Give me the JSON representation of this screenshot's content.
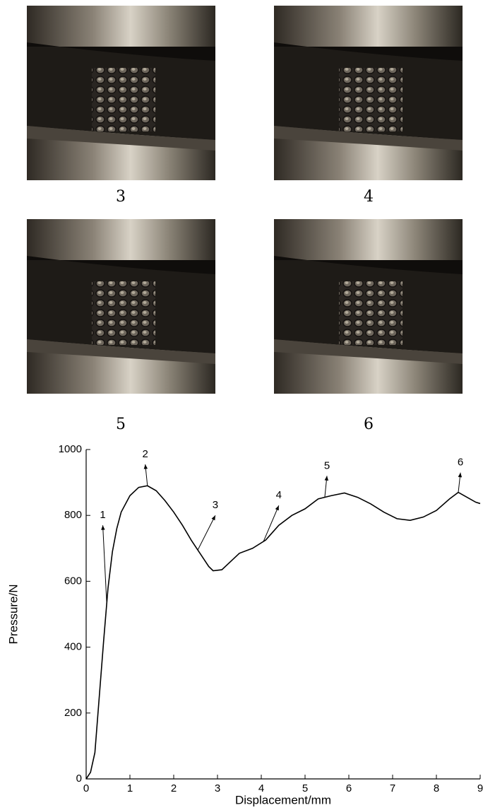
{
  "photos": [
    {
      "caption": "3"
    },
    {
      "caption": "4"
    },
    {
      "caption": "5"
    },
    {
      "caption": "6"
    }
  ],
  "chart_data": {
    "type": "line",
    "color": "#000000",
    "x_label": "Displacement/mm",
    "y_label": "Pressure/N",
    "x": [
      0,
      0.1,
      0.2,
      0.3,
      0.4,
      0.5,
      0.6,
      0.7,
      0.8,
      1.0,
      1.2,
      1.4,
      1.6,
      1.8,
      2.0,
      2.2,
      2.4,
      2.6,
      2.8,
      2.9,
      3.1,
      3.3,
      3.5,
      3.8,
      4.1,
      4.4,
      4.7,
      5.0,
      5.3,
      5.6,
      5.9,
      6.2,
      6.5,
      6.8,
      7.1,
      7.4,
      7.7,
      8.0,
      8.3,
      8.5,
      8.7,
      8.9,
      9.0
    ],
    "values": [
      0,
      20,
      80,
      250,
      420,
      580,
      690,
      760,
      810,
      860,
      885,
      890,
      875,
      845,
      810,
      770,
      725,
      685,
      645,
      632,
      635,
      660,
      685,
      700,
      725,
      770,
      800,
      820,
      850,
      860,
      868,
      855,
      835,
      810,
      790,
      785,
      795,
      815,
      850,
      870,
      855,
      840,
      836
    ],
    "xlim": [
      0,
      9
    ],
    "ylim": [
      0,
      1000
    ],
    "xticks": [
      0,
      1,
      2,
      3,
      4,
      5,
      6,
      7,
      8,
      9
    ],
    "yticks": [
      0,
      200,
      400,
      600,
      800,
      1000
    ],
    "annotations": [
      {
        "text": "1",
        "x": 0.47,
        "label_x": 0.38,
        "label_y": 800
      },
      {
        "text": "2",
        "x": 1.4,
        "label_x": 1.35,
        "label_y": 985
      },
      {
        "text": "3",
        "x": 2.55,
        "label_x": 2.95,
        "label_y": 830
      },
      {
        "text": "4",
        "x": 4.05,
        "label_x": 4.4,
        "label_y": 860
      },
      {
        "text": "5",
        "x": 5.45,
        "label_x": 5.5,
        "label_y": 950
      },
      {
        "text": "6",
        "x": 8.5,
        "label_x": 8.55,
        "label_y": 960
      }
    ]
  }
}
